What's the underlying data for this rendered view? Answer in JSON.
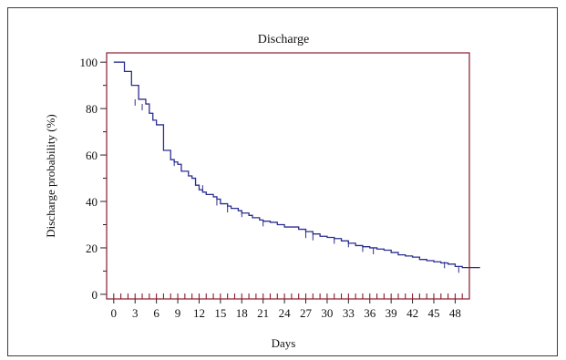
{
  "chart_data": {
    "type": "line",
    "step": true,
    "title": "Discharge",
    "xlabel": "Days",
    "ylabel": "Discharge probability (%)",
    "xlim": [
      -1,
      50
    ],
    "ylim": [
      -2,
      104
    ],
    "x_ticks": [
      0,
      3,
      6,
      9,
      12,
      15,
      18,
      21,
      24,
      27,
      30,
      33,
      36,
      39,
      42,
      45,
      48
    ],
    "x_tick_labels": [
      "0",
      "3",
      "6",
      "9",
      "12",
      "15",
      "18",
      "21",
      "24",
      "27",
      "30",
      "33",
      "36",
      "39",
      "42",
      "45",
      "48"
    ],
    "y_ticks": [
      0,
      20,
      40,
      60,
      80,
      100
    ],
    "y_tick_labels": [
      "0",
      "20",
      "40",
      "60",
      "80",
      "100"
    ],
    "line_color": "#2b2f8f",
    "axis_color": "#8b1a2b",
    "grid": false,
    "series": [
      {
        "x": [
          0,
          1.5,
          2.5,
          3.5,
          4.5,
          5.0,
          5.5,
          6.0,
          6.5,
          7.0,
          7.5,
          8.0,
          8.5,
          9.0,
          9.5,
          10.5,
          11.0,
          11.5,
          12.0,
          12.5,
          13.0,
          14.0,
          14.5,
          15.0,
          16.0,
          16.5,
          17.5,
          18.0,
          18.5,
          19.0,
          19.5,
          20.0,
          20.5,
          21.0,
          22.0,
          23.0,
          24.0,
          26.0,
          27.0,
          28.0,
          29.0,
          30.0,
          31.0,
          32.0,
          33.0,
          34.0,
          35.0,
          36.0,
          37.0,
          38.0,
          39.0,
          40.0,
          41.0,
          42.0,
          43.0,
          44.0,
          45.0,
          46.0,
          47.0,
          48.0,
          49.0,
          50.0
        ],
        "y": [
          100,
          96,
          90,
          84,
          82,
          78,
          75,
          73,
          73,
          62,
          62,
          58,
          57,
          56,
          53,
          51,
          50,
          47,
          45,
          44,
          43,
          42,
          41,
          39,
          38,
          37,
          36,
          35,
          35,
          34,
          33,
          33,
          32,
          31.5,
          31,
          30,
          29,
          28,
          27,
          26,
          25,
          24.5,
          24,
          23,
          22,
          21,
          20.5,
          20,
          19.5,
          19,
          18,
          17,
          16.5,
          16,
          15,
          14.5,
          14,
          13.5,
          13,
          12,
          11.5,
          11.5
        ],
        "end_x": 51.5,
        "censor_x": [
          3.0,
          4.0,
          8.5,
          12.5,
          14.5,
          16.0,
          18.0,
          21.0,
          27.0,
          28.0,
          31.0,
          33.0,
          35.0,
          36.5,
          46.5,
          48.5
        ],
        "censor_y": [
          84,
          82,
          58,
          47,
          41,
          38,
          36,
          32,
          27,
          26,
          24.5,
          23,
          21,
          20,
          14,
          12
        ]
      }
    ]
  }
}
